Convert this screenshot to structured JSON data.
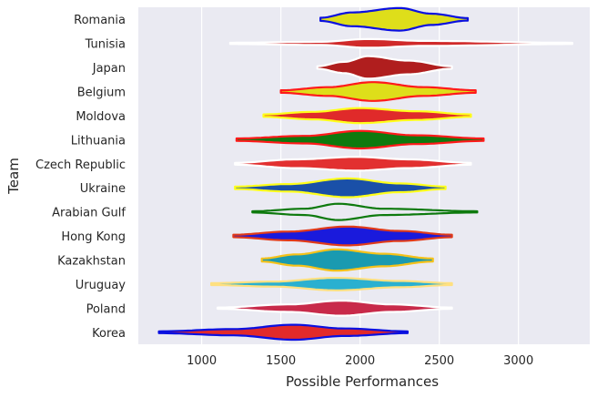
{
  "chart_data": {
    "type": "violin",
    "orientation": "horizontal",
    "title": "",
    "xlabel": "Possible Performances",
    "ylabel": "Team",
    "xlim": [
      600,
      3450
    ],
    "xticks": [
      1000,
      1500,
      2000,
      2500,
      3000
    ],
    "grid": true,
    "legend": "none",
    "background": "#eaeaf2",
    "gridline_color": "#ffffff",
    "series": [
      {
        "team": "Romania",
        "min": 1750,
        "max": 2680,
        "center": 2250,
        "spread": 0.32,
        "shape": [
          [
            1750,
            0.05
          ],
          [
            1950,
            0.22
          ],
          [
            2250,
            0.36
          ],
          [
            2450,
            0.18
          ],
          [
            2680,
            0.04
          ]
        ],
        "fill": "#dede1a",
        "edge": "#0a10e0"
      },
      {
        "team": "Tunisia",
        "min": 1180,
        "max": 3340,
        "center": 2050,
        "spread": 0.15,
        "shape": [
          [
            1180,
            0.02
          ],
          [
            1750,
            0.05
          ],
          [
            2050,
            0.14
          ],
          [
            2400,
            0.08
          ],
          [
            3340,
            0.02
          ]
        ],
        "fill": "#d02a2a",
        "edge": "#ffffff"
      },
      {
        "team": "Japan",
        "min": 1730,
        "max": 2580,
        "center": 2050,
        "spread": 0.38,
        "shape": [
          [
            1730,
            0.04
          ],
          [
            1900,
            0.18
          ],
          [
            2050,
            0.36
          ],
          [
            2300,
            0.22
          ],
          [
            2580,
            0.04
          ]
        ],
        "fill": "#b01e1e",
        "edge": "#ffffff"
      },
      {
        "team": "Belgium",
        "min": 1500,
        "max": 2730,
        "center": 2080,
        "spread": 0.3,
        "shape": [
          [
            1500,
            0.04
          ],
          [
            1800,
            0.14
          ],
          [
            2080,
            0.3
          ],
          [
            2400,
            0.14
          ],
          [
            2730,
            0.04
          ]
        ],
        "fill": "#dede1a",
        "edge": "#ff1a1a"
      },
      {
        "team": "Moldova",
        "min": 1390,
        "max": 2700,
        "center": 2000,
        "spread": 0.24,
        "shape": [
          [
            1390,
            0.04
          ],
          [
            1700,
            0.12
          ],
          [
            2000,
            0.24
          ],
          [
            2350,
            0.14
          ],
          [
            2700,
            0.04
          ]
        ],
        "fill": "#e02a2a",
        "edge": "#ffff1a"
      },
      {
        "team": "Lithuania",
        "min": 1220,
        "max": 2780,
        "center": 2000,
        "spread": 0.28,
        "shape": [
          [
            1220,
            0.04
          ],
          [
            1650,
            0.12
          ],
          [
            2000,
            0.28
          ],
          [
            2350,
            0.14
          ],
          [
            2780,
            0.04
          ]
        ],
        "fill": "#0e7a0e",
        "edge": "#ff1a1a"
      },
      {
        "team": "Czech Republic",
        "min": 1210,
        "max": 2700,
        "center": 1980,
        "spread": 0.22,
        "shape": [
          [
            1210,
            0.03
          ],
          [
            1600,
            0.14
          ],
          [
            1980,
            0.22
          ],
          [
            2300,
            0.14
          ],
          [
            2700,
            0.03
          ]
        ],
        "fill": "#e23030",
        "edge": "#ffffff"
      },
      {
        "team": "Ukraine",
        "min": 1210,
        "max": 2540,
        "center": 1920,
        "spread": 0.3,
        "shape": [
          [
            1210,
            0.04
          ],
          [
            1550,
            0.12
          ],
          [
            1920,
            0.3
          ],
          [
            2250,
            0.14
          ],
          [
            2540,
            0.04
          ]
        ],
        "fill": "#1a50a8",
        "edge": "#ffff1a"
      },
      {
        "team": "Arabian Gulf",
        "min": 1320,
        "max": 2740,
        "center": 1860,
        "spread": 0.26,
        "shape": [
          [
            1320,
            0.02
          ],
          [
            1650,
            0.1
          ],
          [
            1860,
            0.26
          ],
          [
            2150,
            0.1
          ],
          [
            2740,
            0.02
          ]
        ],
        "fill": "#eaeaf2",
        "edge": "#0e7a0e"
      },
      {
        "team": "Hong Kong",
        "min": 1200,
        "max": 2580,
        "center": 1920,
        "spread": 0.3,
        "shape": [
          [
            1200,
            0.04
          ],
          [
            1550,
            0.14
          ],
          [
            1920,
            0.3
          ],
          [
            2250,
            0.16
          ],
          [
            2580,
            0.04
          ]
        ],
        "fill": "#1a1adc",
        "edge": "#e03a1a"
      },
      {
        "team": "Kazakhstan",
        "min": 1380,
        "max": 2460,
        "center": 1850,
        "spread": 0.34,
        "shape": [
          [
            1380,
            0.05
          ],
          [
            1600,
            0.18
          ],
          [
            1850,
            0.34
          ],
          [
            2150,
            0.2
          ],
          [
            2460,
            0.05
          ]
        ],
        "fill": "#1a9ab0",
        "edge": "#f5c21a"
      },
      {
        "team": "Uruguay",
        "min": 1060,
        "max": 2580,
        "center": 1850,
        "spread": 0.2,
        "shape": [
          [
            1060,
            0.03
          ],
          [
            1450,
            0.08
          ],
          [
            1850,
            0.2
          ],
          [
            2250,
            0.1
          ],
          [
            2580,
            0.03
          ]
        ],
        "fill": "#2ab0d0",
        "edge": "#ffe080"
      },
      {
        "team": "Poland",
        "min": 1100,
        "max": 2580,
        "center": 1880,
        "spread": 0.24,
        "shape": [
          [
            1100,
            0.02
          ],
          [
            1550,
            0.12
          ],
          [
            1880,
            0.24
          ],
          [
            2200,
            0.12
          ],
          [
            2580,
            0.02
          ]
        ],
        "fill": "#c82a4a",
        "edge": "#ffffff"
      },
      {
        "team": "Korea",
        "min": 730,
        "max": 2300,
        "center": 1580,
        "spread": 0.24,
        "shape": [
          [
            730,
            0.03
          ],
          [
            1200,
            0.1
          ],
          [
            1580,
            0.24
          ],
          [
            1900,
            0.12
          ],
          [
            2300,
            0.03
          ]
        ],
        "fill": "#e22a2a",
        "edge": "#0a10e0"
      }
    ]
  }
}
